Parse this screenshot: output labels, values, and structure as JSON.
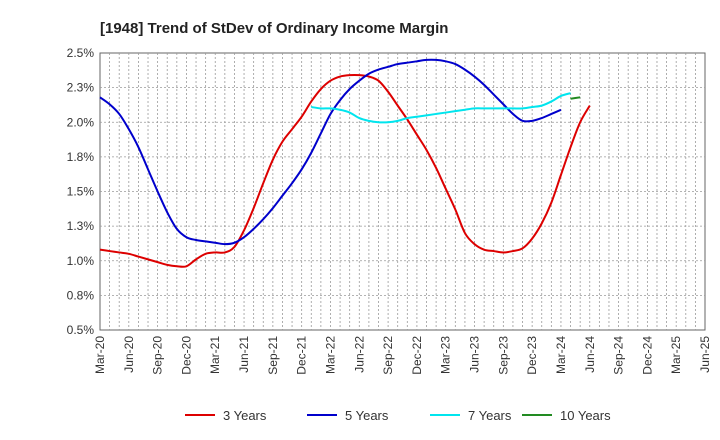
{
  "chart_data": {
    "type": "line",
    "title": "[1948]  Trend of StDev of Ordinary Income Margin",
    "xlabel": "",
    "ylabel": "",
    "x_ticks": [
      "Mar-20",
      "Jun-20",
      "Sep-20",
      "Dec-20",
      "Mar-21",
      "Jun-21",
      "Sep-21",
      "Dec-21",
      "Mar-22",
      "Jun-22",
      "Sep-22",
      "Dec-22",
      "Mar-23",
      "Jun-23",
      "Sep-23",
      "Dec-23",
      "Mar-24",
      "Jun-24",
      "Sep-24",
      "Dec-24",
      "Mar-25",
      "Jun-25"
    ],
    "y_ticks": [
      "0.5%",
      "0.8%",
      "1.0%",
      "1.3%",
      "1.5%",
      "1.8%",
      "2.0%",
      "2.3%",
      "2.5%"
    ],
    "ylim": [
      0.5,
      2.5
    ],
    "grid": true,
    "legend_position": "bottom",
    "series": [
      {
        "name": "3 Years",
        "color": "#dd0000",
        "values": [
          1.08,
          1.07,
          1.06,
          1.05,
          1.03,
          1.01,
          0.99,
          0.97,
          0.96,
          0.96,
          1.01,
          1.05,
          1.06,
          1.06,
          1.1,
          1.22,
          1.38,
          1.56,
          1.73,
          1.86,
          1.95,
          2.04,
          2.15,
          2.24,
          2.3,
          2.33,
          2.34,
          2.34,
          2.33,
          2.3,
          2.22,
          2.12,
          2.02,
          1.91,
          1.8,
          1.67,
          1.52,
          1.37,
          1.2,
          1.12,
          1.08,
          1.07,
          1.06,
          1.07,
          1.09,
          1.16,
          1.27,
          1.42,
          1.62,
          1.82,
          2.0,
          2.12
        ]
      },
      {
        "name": "5 Years",
        "color": "#0000cc",
        "values": [
          2.18,
          2.13,
          2.06,
          1.95,
          1.82,
          1.66,
          1.5,
          1.35,
          1.23,
          1.17,
          1.15,
          1.14,
          1.13,
          1.12,
          1.13,
          1.17,
          1.23,
          1.3,
          1.38,
          1.47,
          1.56,
          1.66,
          1.78,
          1.92,
          2.06,
          2.16,
          2.24,
          2.3,
          2.35,
          2.38,
          2.4,
          2.42,
          2.43,
          2.44,
          2.45,
          2.45,
          2.44,
          2.42,
          2.38,
          2.33,
          2.27,
          2.2,
          2.13,
          2.06,
          2.01,
          2.01,
          2.03,
          2.06,
          2.09
        ]
      },
      {
        "name": "7 Years",
        "color": "#00e5ee",
        "values": [
          null,
          null,
          null,
          null,
          null,
          null,
          null,
          null,
          null,
          null,
          null,
          null,
          null,
          null,
          null,
          null,
          null,
          null,
          null,
          null,
          null,
          null,
          2.11,
          2.1,
          2.1,
          2.09,
          2.07,
          2.03,
          2.01,
          2.0,
          2.0,
          2.01,
          2.03,
          2.04,
          2.05,
          2.06,
          2.07,
          2.08,
          2.09,
          2.1,
          2.1,
          2.1,
          2.1,
          2.1,
          2.1,
          2.11,
          2.12,
          2.15,
          2.19,
          2.21
        ]
      },
      {
        "name": "10 Years",
        "color": "#228b22",
        "values": [
          null,
          null,
          null,
          null,
          null,
          null,
          null,
          null,
          null,
          null,
          null,
          null,
          null,
          null,
          null,
          null,
          null,
          null,
          null,
          null,
          null,
          null,
          null,
          null,
          null,
          null,
          null,
          null,
          null,
          null,
          null,
          null,
          null,
          null,
          null,
          null,
          null,
          null,
          null,
          null,
          null,
          null,
          null,
          null,
          null,
          null,
          null,
          null,
          null,
          2.17,
          2.18
        ]
      }
    ]
  }
}
